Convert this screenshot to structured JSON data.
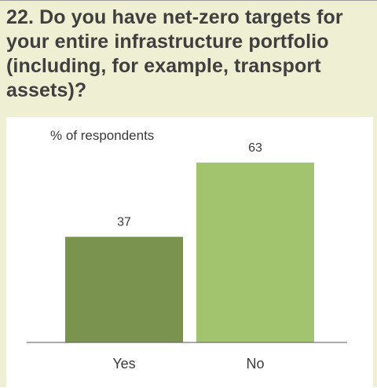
{
  "header": {
    "title": "22. Do you have net-zero targets for your entire infrastructure portfolio (including, for example, transport assets)?"
  },
  "chart_data": {
    "type": "bar",
    "title": "22. Do you have net-zero targets for your entire infrastructure portfolio (including, for example, transport assets)?",
    "ylabel": "% of respondents",
    "xlabel": "",
    "categories": [
      "Yes",
      "No"
    ],
    "values": [
      37,
      63
    ],
    "colors": [
      "#7a9450",
      "#a3c46f"
    ],
    "ylim": [
      0,
      63
    ],
    "grid": false,
    "legend": "none"
  }
}
